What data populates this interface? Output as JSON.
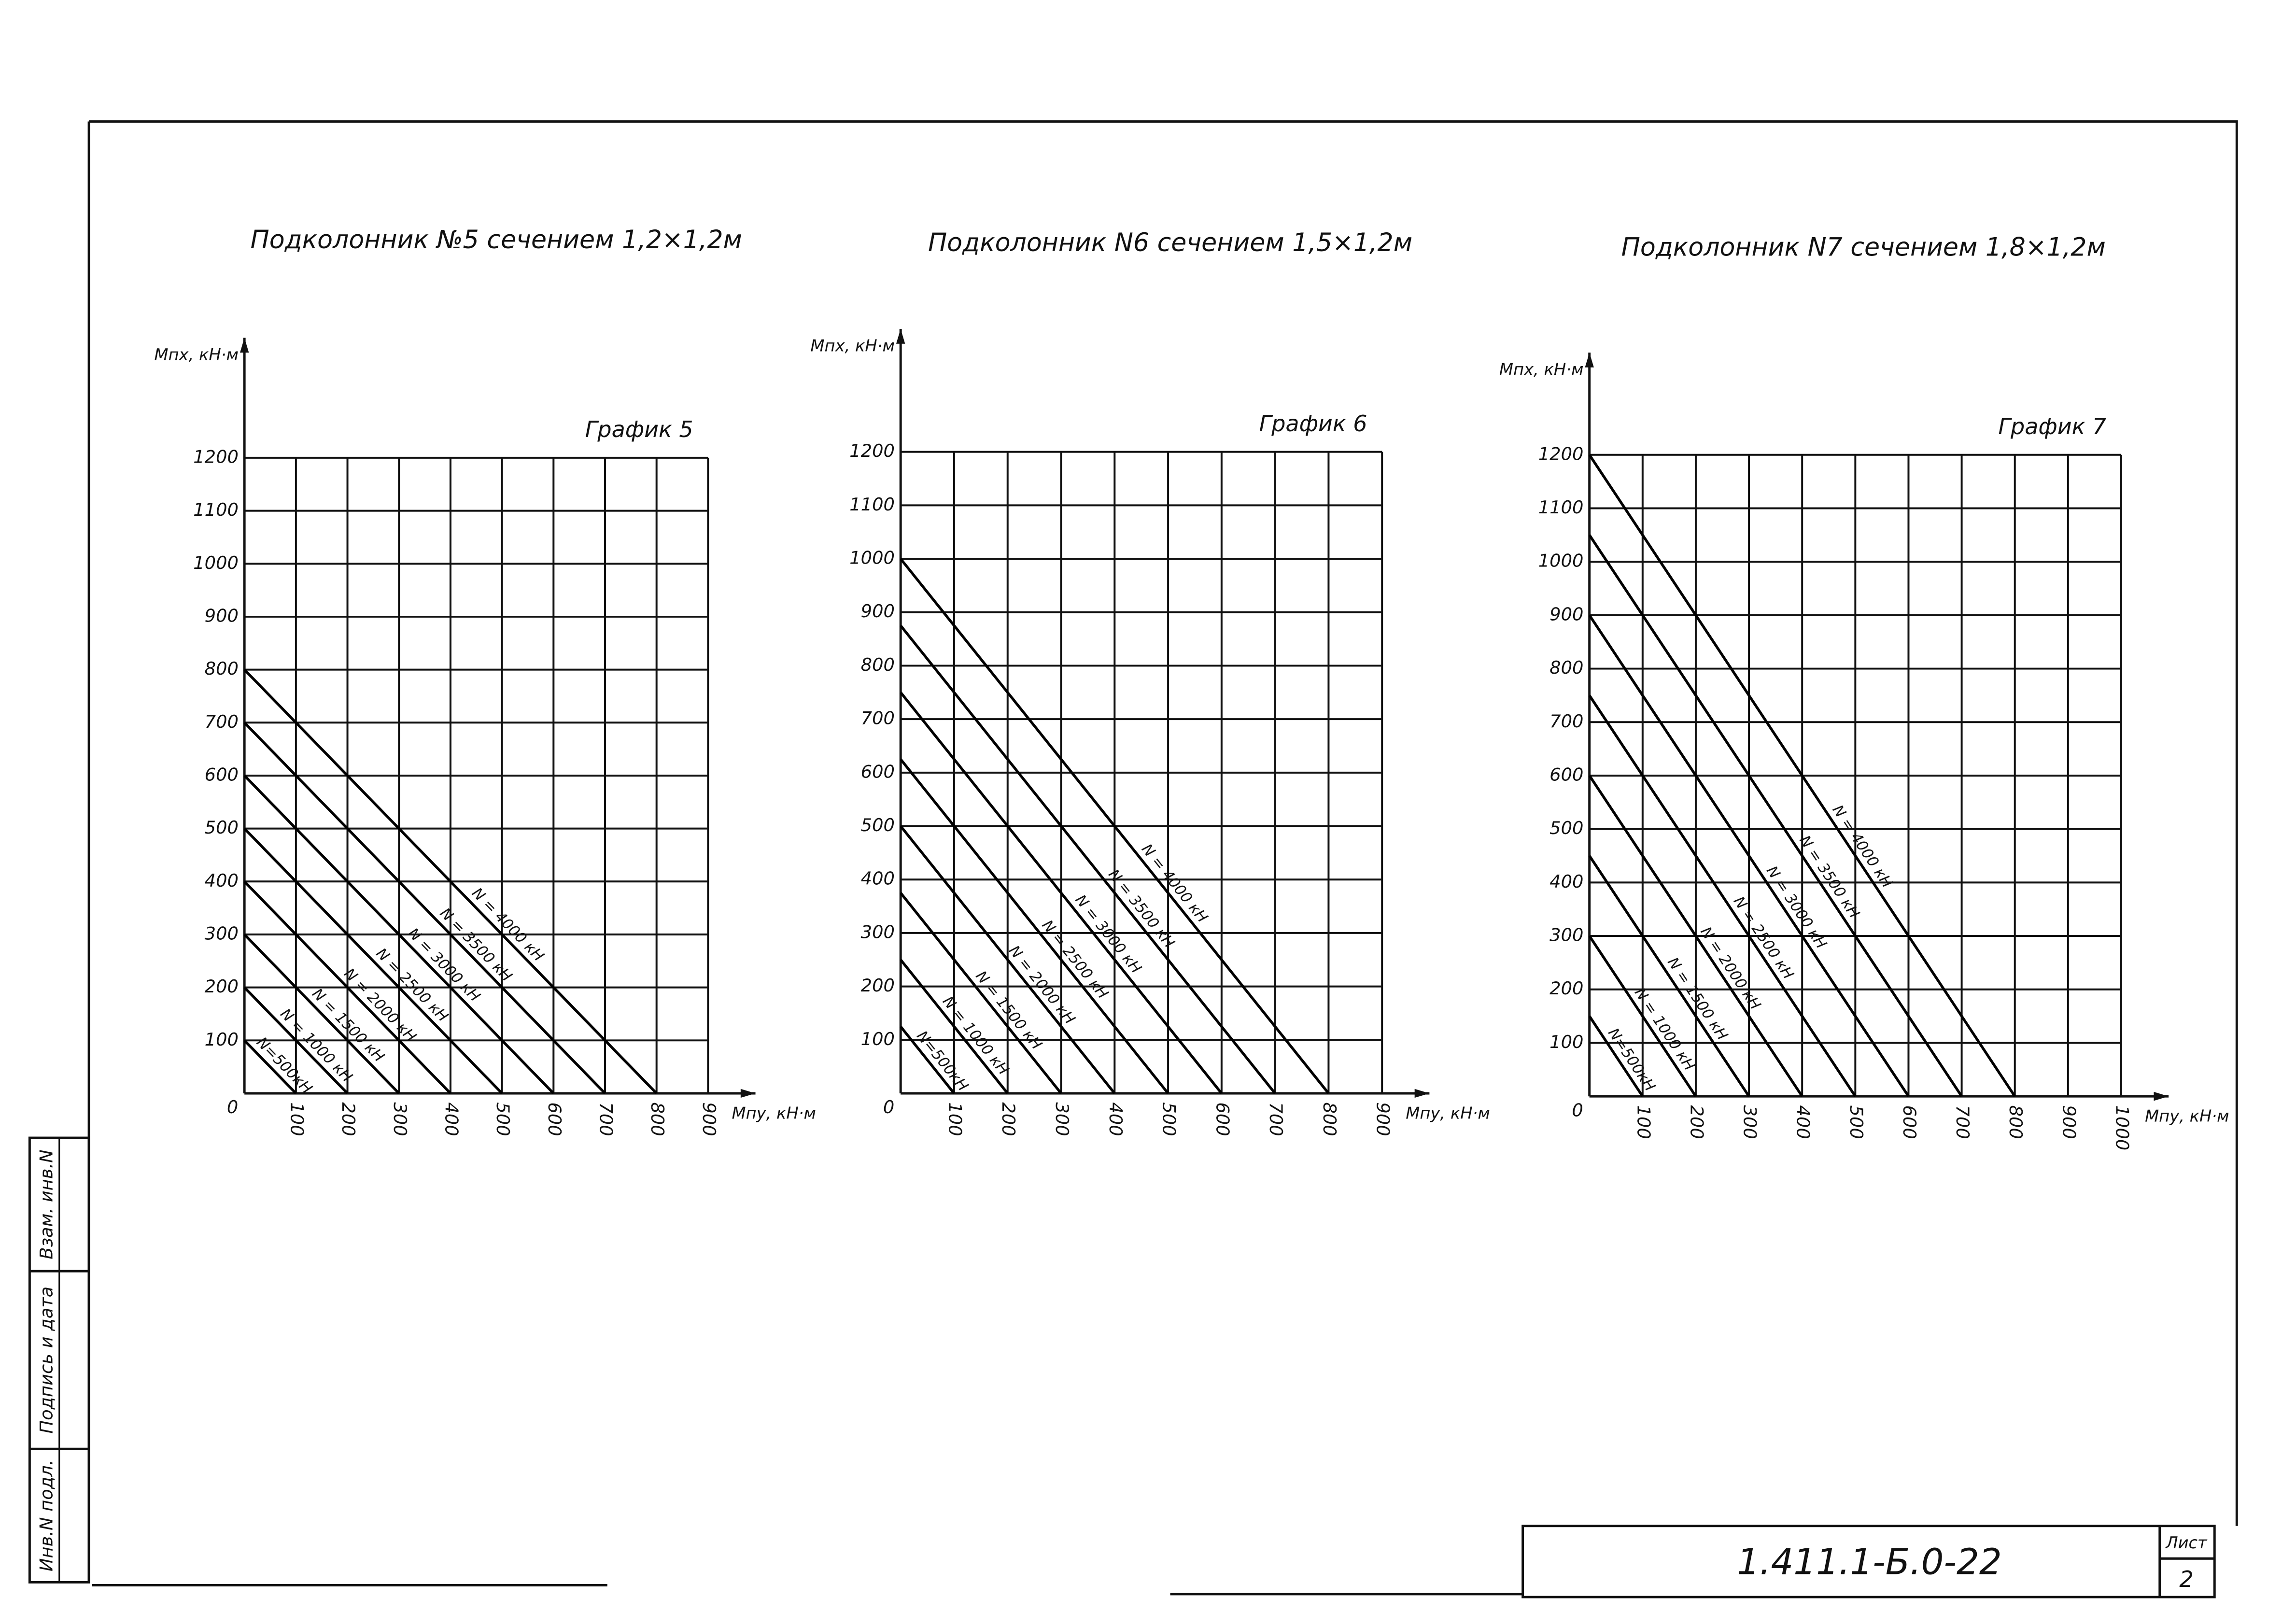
{
  "chart_data": [
    {
      "type": "line",
      "title": "Подколонник №5 сечением 1,2×1,2м",
      "annotation": "График 5",
      "xlabel": "Мпу, кН·м",
      "ylabel": "Мпх, кН·м",
      "xlim": [
        0,
        900
      ],
      "ylim": [
        0,
        1200
      ],
      "xticks": [
        0,
        100,
        200,
        300,
        400,
        500,
        600,
        700,
        800,
        900
      ],
      "yticks": [
        100,
        200,
        300,
        400,
        500,
        600,
        700,
        800,
        900,
        1000,
        1100,
        1200
      ],
      "grid": true,
      "series": [
        {
          "name": "N = 4000 кН",
          "color": "#000000",
          "x": [
            0,
            800
          ],
          "values": [
            800,
            0
          ]
        },
        {
          "name": "N = 3500 кН",
          "color": "#000000",
          "x": [
            0,
            700
          ],
          "values": [
            700,
            0
          ]
        },
        {
          "name": "N = 3000 кН",
          "color": "#000000",
          "x": [
            0,
            600
          ],
          "values": [
            600,
            0
          ]
        },
        {
          "name": "N = 2500 кН",
          "color": "#000000",
          "x": [
            0,
            500
          ],
          "values": [
            500,
            0
          ]
        },
        {
          "name": "N = 2000 кН",
          "color": "#000000",
          "x": [
            0,
            400
          ],
          "values": [
            400,
            0
          ]
        },
        {
          "name": "N = 1500 кН",
          "color": "#000000",
          "x": [
            0,
            300
          ],
          "values": [
            300,
            0
          ]
        },
        {
          "name": "N = 1000 кН",
          "color": "#000000",
          "x": [
            0,
            200
          ],
          "values": [
            200,
            0
          ]
        },
        {
          "name": "N=500кН",
          "color": "#000000",
          "x": [
            0,
            100
          ],
          "values": [
            100,
            0
          ]
        }
      ]
    },
    {
      "type": "line",
      "title": "Подколонник N6 сечением 1,5×1,2м",
      "annotation": "График 6",
      "xlabel": "Мпу, кН·м",
      "ylabel": "Мпх, кН·м",
      "xlim": [
        0,
        900
      ],
      "ylim": [
        0,
        1200
      ],
      "xticks": [
        0,
        100,
        200,
        300,
        400,
        500,
        600,
        700,
        800,
        900
      ],
      "yticks": [
        100,
        200,
        300,
        400,
        500,
        600,
        700,
        800,
        900,
        1000,
        1100,
        1200
      ],
      "grid": true,
      "series": [
        {
          "name": "N = 4000 кН",
          "color": "#000000",
          "x": [
            0,
            800
          ],
          "values": [
            1000,
            0
          ]
        },
        {
          "name": "N = 3500 кН",
          "color": "#000000",
          "x": [
            0,
            700
          ],
          "values": [
            875,
            0
          ]
        },
        {
          "name": "N = 3000 кН",
          "color": "#000000",
          "x": [
            0,
            600
          ],
          "values": [
            750,
            0
          ]
        },
        {
          "name": "N = 2500 кН",
          "color": "#000000",
          "x": [
            0,
            500
          ],
          "values": [
            625,
            0
          ]
        },
        {
          "name": "N = 2000 кН",
          "color": "#000000",
          "x": [
            0,
            400
          ],
          "values": [
            500,
            0
          ]
        },
        {
          "name": "N = 1500 кН",
          "color": "#000000",
          "x": [
            0,
            300
          ],
          "values": [
            375,
            0
          ]
        },
        {
          "name": "N = 1000 кН",
          "color": "#000000",
          "x": [
            0,
            200
          ],
          "values": [
            250,
            0
          ]
        },
        {
          "name": "N=500кН",
          "color": "#000000",
          "x": [
            0,
            100
          ],
          "values": [
            125,
            0
          ]
        }
      ]
    },
    {
      "type": "line",
      "title": "Подколонник N7 сечением 1,8×1,2м",
      "annotation": "График 7",
      "xlabel": "Мпу, кН·м",
      "ylabel": "Мпх, кН·м",
      "xlim": [
        0,
        1000
      ],
      "ylim": [
        0,
        1200
      ],
      "xticks": [
        0,
        100,
        200,
        300,
        400,
        500,
        600,
        700,
        800,
        900,
        1000
      ],
      "yticks": [
        100,
        200,
        300,
        400,
        500,
        600,
        700,
        800,
        900,
        1000,
        1100,
        1200
      ],
      "grid": true,
      "series": [
        {
          "name": "N = 4000 кН",
          "color": "#000000",
          "x": [
            0,
            800
          ],
          "values": [
            1200,
            0
          ]
        },
        {
          "name": "N = 3500 кН",
          "color": "#000000",
          "x": [
            0,
            700
          ],
          "values": [
            1050,
            0
          ]
        },
        {
          "name": "N = 3000 кН",
          "color": "#000000",
          "x": [
            0,
            600
          ],
          "values": [
            900,
            0
          ]
        },
        {
          "name": "N = 2500 кН",
          "color": "#000000",
          "x": [
            0,
            500
          ],
          "values": [
            750,
            0
          ]
        },
        {
          "name": "N = 2000 кН",
          "color": "#000000",
          "x": [
            0,
            400
          ],
          "values": [
            600,
            0
          ]
        },
        {
          "name": "N = 1500 кН",
          "color": "#000000",
          "x": [
            0,
            300
          ],
          "values": [
            450,
            0
          ]
        },
        {
          "name": "N = 1000 кН",
          "color": "#000000",
          "x": [
            0,
            200
          ],
          "values": [
            300,
            0
          ]
        },
        {
          "name": "N=500кН",
          "color": "#000000",
          "x": [
            0,
            100
          ],
          "values": [
            150,
            0
          ]
        }
      ]
    }
  ],
  "stamp": {
    "document_code": "1.411.1-Б.0-22",
    "sheet_label": "Лист",
    "sheet_number": "2",
    "side_fields": [
      "Инв.N подл.",
      "Подпись и дата",
      "Взам. инв.N"
    ]
  }
}
